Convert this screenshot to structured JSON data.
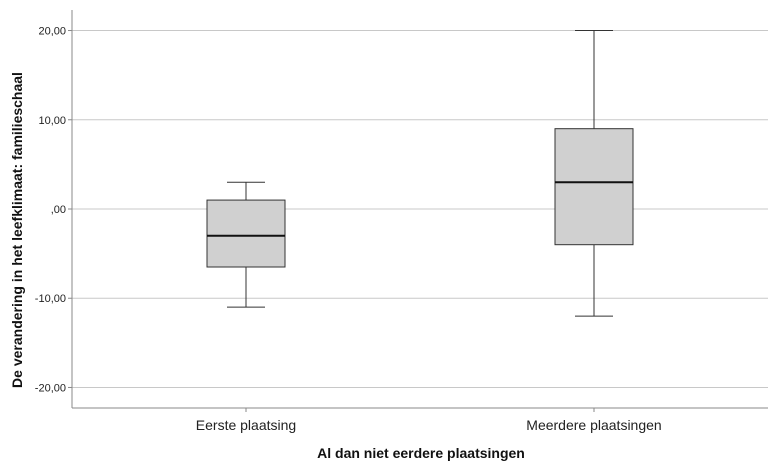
{
  "chart_data": {
    "type": "box",
    "xlabel": "Al dan niet eerdere plaatsingen",
    "ylabel": "De verandering in het leefklimaat: familieschaal",
    "ylim": [
      -22.3,
      22.3
    ],
    "yticks": [
      20,
      10,
      0,
      -10,
      -20
    ],
    "ytick_labels": [
      "20,00",
      "10,00",
      ",00",
      "-10,00",
      "-20,00"
    ],
    "grid": true,
    "categories": [
      "Eerste plaatsing",
      "Meerdere plaatsingen"
    ],
    "boxes": [
      {
        "category": "Eerste plaatsing",
        "min": -11,
        "q1": -6.5,
        "median": -3,
        "q3": 1,
        "max": 3
      },
      {
        "category": "Meerdere plaatsingen",
        "min": -12,
        "q1": -4,
        "median": 3,
        "q3": 9,
        "max": 20
      }
    ],
    "colors": {
      "box_fill": "#d0d0d0",
      "box_stroke": "#333333",
      "grid": "#c8c8c8",
      "axis": "#888888"
    }
  }
}
